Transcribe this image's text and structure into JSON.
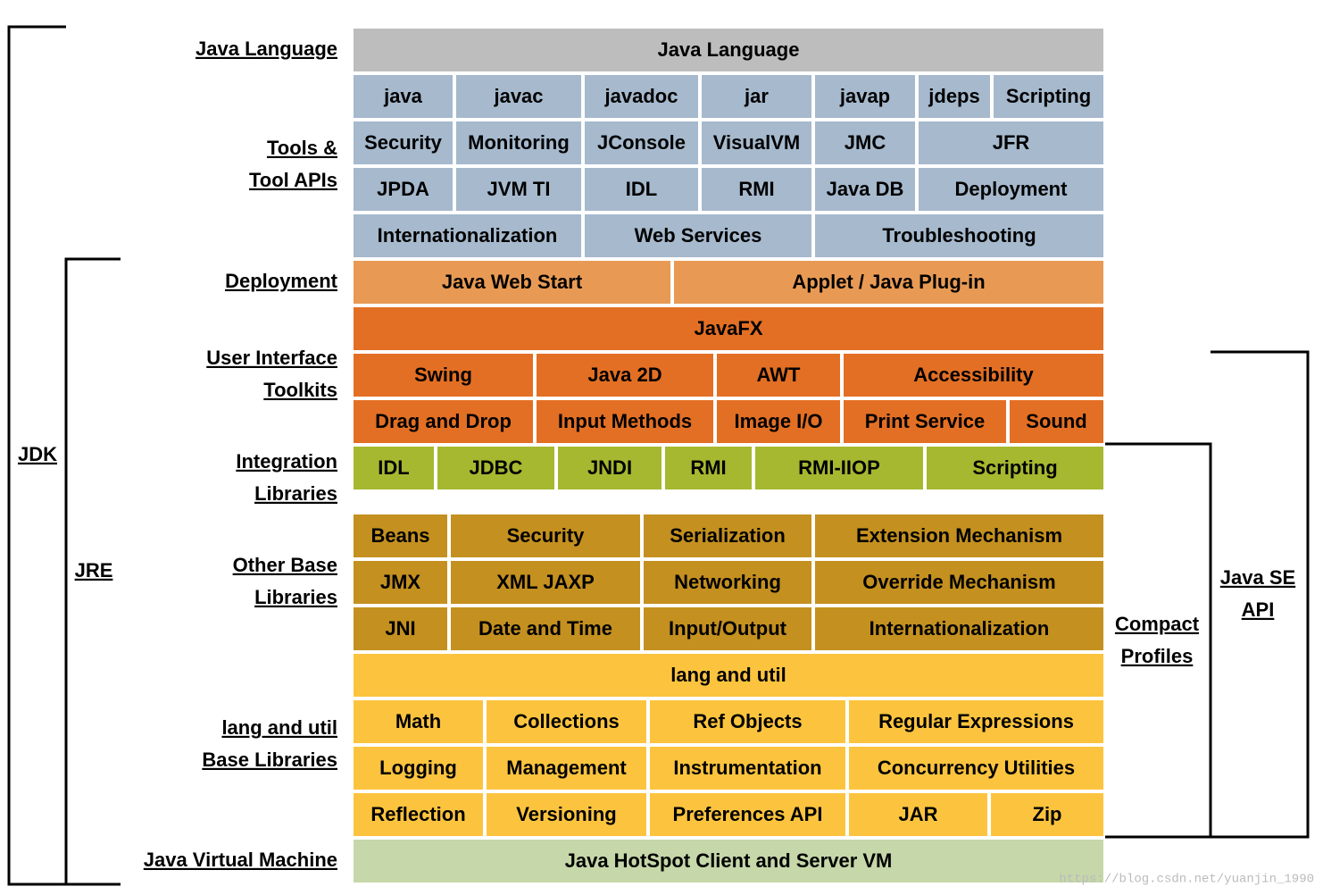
{
  "rows": [
    [
      "Java Language"
    ],
    [
      "java",
      "javac",
      "javadoc",
      "jar",
      "javap",
      "jdeps",
      "Scripting"
    ],
    [
      "Security",
      "Monitoring",
      "JConsole",
      "VisualVM",
      "JMC",
      "JFR"
    ],
    [
      "JPDA",
      "JVM TI",
      "IDL",
      "RMI",
      "Java DB",
      "Deployment"
    ],
    [
      "Internationalization",
      "Web Services",
      "Troubleshooting"
    ],
    [
      "Java Web Start",
      "Applet / Java Plug-in"
    ],
    [
      "JavaFX"
    ],
    [
      "Swing",
      "Java 2D",
      "AWT",
      "Accessibility"
    ],
    [
      "Drag and Drop",
      "Input Methods",
      "Image I/O",
      "Print Service",
      "Sound"
    ],
    [
      "IDL",
      "JDBC",
      "JNDI",
      "RMI",
      "RMI-IIOP",
      "Scripting"
    ],
    [
      "Beans",
      "Security",
      "Serialization",
      "Extension Mechanism"
    ],
    [
      "JMX",
      "XML JAXP",
      "Networking",
      "Override Mechanism"
    ],
    [
      "JNI",
      "Date and Time",
      "Input/Output",
      "Internationalization"
    ],
    [
      "lang and util"
    ],
    [
      "Math",
      "Collections",
      "Ref Objects",
      "Regular Expressions"
    ],
    [
      "Logging",
      "Management",
      "Instrumentation",
      "Concurrency Utilities"
    ],
    [
      "Reflection",
      "Versioning",
      "Preferences API",
      "JAR",
      "Zip"
    ],
    [
      "Java HotSpot Client and Server VM"
    ]
  ],
  "side_labels": [
    [
      "Java Language"
    ],
    [
      "Tools &",
      "Tool APIs"
    ],
    [
      "Deployment"
    ],
    [
      "User Interface",
      "Toolkits"
    ],
    [
      "Integration",
      "Libraries"
    ],
    [
      "Other Base",
      "Libraries"
    ],
    [
      "lang and util",
      "Base Libraries"
    ],
    [
      "Java Virtual Machine"
    ]
  ],
  "brackets": {
    "jdk": [
      "JDK"
    ],
    "jre": [
      "JRE"
    ],
    "compact_profiles": [
      "Compact",
      "Profiles"
    ],
    "java_se_api": [
      "Java SE",
      "API"
    ]
  },
  "watermark": "https://blog.csdn.net/yuanjin_1990"
}
